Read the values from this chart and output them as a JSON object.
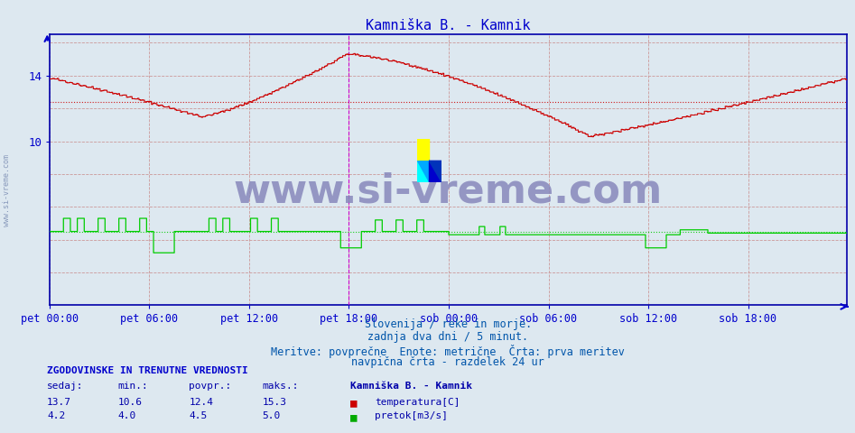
{
  "title": "Kamniška B. - Kamnik",
  "title_color": "#0000cc",
  "bg_color": "#dde8f0",
  "plot_bg_color": "#dde8f0",
  "xlabel": "",
  "ylabel": "",
  "xlim": [
    0,
    575
  ],
  "ylim": [
    0,
    16.5
  ],
  "yticks": [
    10,
    14
  ],
  "xtick_labels": [
    "pet 00:00",
    "pet 06:00",
    "pet 12:00",
    "pet 18:00",
    "sob 00:00",
    "sob 06:00",
    "sob 12:00",
    "sob 18:00"
  ],
  "xtick_positions": [
    0,
    72,
    144,
    216,
    288,
    360,
    432,
    504
  ],
  "grid_color": "#cc9999",
  "temp_color": "#cc0000",
  "flow_color": "#00cc00",
  "avg_temp": 12.4,
  "avg_flow": 4.5,
  "watermark_text": "www.si-vreme.com",
  "watermark_color": "#8888bb",
  "subtitle_lines": [
    "Slovenija / reke in morje.",
    "zadnja dva dni / 5 minut.",
    "Meritve: povprečne  Enote: metrične  Črta: prva meritev",
    "navpična črta - razdelek 24 ur"
  ],
  "subtitle_color": "#0055aa",
  "legend_title": "Kamniška B. - Kamnik",
  "legend_color": "#0000aa",
  "stats_header": "ZGODOVINSKE IN TRENUTNE VREDNOSTI",
  "stats_header_color": "#0000cc",
  "stats_labels": [
    "sedaj:",
    "min.:",
    "povpr.:",
    "maks.:"
  ],
  "temp_stats": [
    13.7,
    10.6,
    12.4,
    15.3
  ],
  "flow_stats": [
    4.2,
    4.0,
    4.5,
    5.0
  ],
  "temp_label": "temperatura[C]",
  "flow_label": "pretok[m3/s]",
  "vline_pos": 216,
  "vline_color": "#cc00cc",
  "arrow_color": "#0000cc",
  "spine_color": "#0000aa"
}
